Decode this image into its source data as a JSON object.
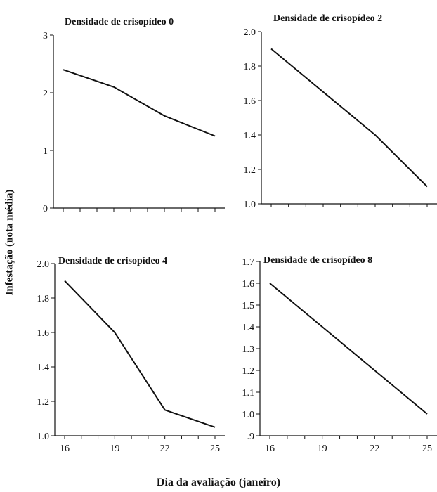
{
  "figure": {
    "ylabel": "Infestação (nota média)",
    "xlabel": "Dia da avaliação (janeiro)"
  },
  "chart_data": [
    {
      "type": "line",
      "title": "Densidade de crisopídeo 0",
      "x": [
        16,
        19,
        22,
        25
      ],
      "y": [
        2.4,
        2.1,
        1.6,
        1.25
      ],
      "xlim": [
        16,
        25
      ],
      "ylim": [
        0,
        3
      ],
      "yticks": [
        "0",
        "1",
        "2",
        "3"
      ],
      "xticks": [],
      "grid": false
    },
    {
      "type": "line",
      "title": "Densidade de crisopídeo 2",
      "x": [
        16,
        19,
        22,
        25
      ],
      "y": [
        1.9,
        1.65,
        1.4,
        1.1
      ],
      "xlim": [
        16,
        25
      ],
      "ylim": [
        1.0,
        2.0
      ],
      "yticks": [
        "1.0",
        "1.2",
        "1.4",
        "1.6",
        "1.8",
        "2.0"
      ],
      "xticks": [],
      "grid": false
    },
    {
      "type": "line",
      "title": "Densidade de crisopídeo 4",
      "x": [
        16,
        19,
        22,
        25
      ],
      "y": [
        1.9,
        1.6,
        1.15,
        1.05
      ],
      "xlim": [
        16,
        25
      ],
      "ylim": [
        1.0,
        2.0
      ],
      "yticks": [
        "1.0",
        "1.2",
        "1.4",
        "1.6",
        "1.8",
        "2.0"
      ],
      "xticks": [
        "16",
        "19",
        "22",
        "25"
      ],
      "grid": false
    },
    {
      "type": "line",
      "title": "Densidade de crisopídeo 8",
      "x": [
        16,
        19,
        22,
        25
      ],
      "y": [
        1.6,
        1.4,
        1.2,
        1.0
      ],
      "xlim": [
        16,
        25
      ],
      "ylim": [
        0.9,
        1.7
      ],
      "yticks": [
        ".9",
        "1.0",
        "1.1",
        "1.2",
        "1.3",
        "1.4",
        "1.5",
        "1.6",
        "1.7"
      ],
      "xticks": [
        "16",
        "19",
        "22",
        "25"
      ],
      "grid": false
    }
  ]
}
